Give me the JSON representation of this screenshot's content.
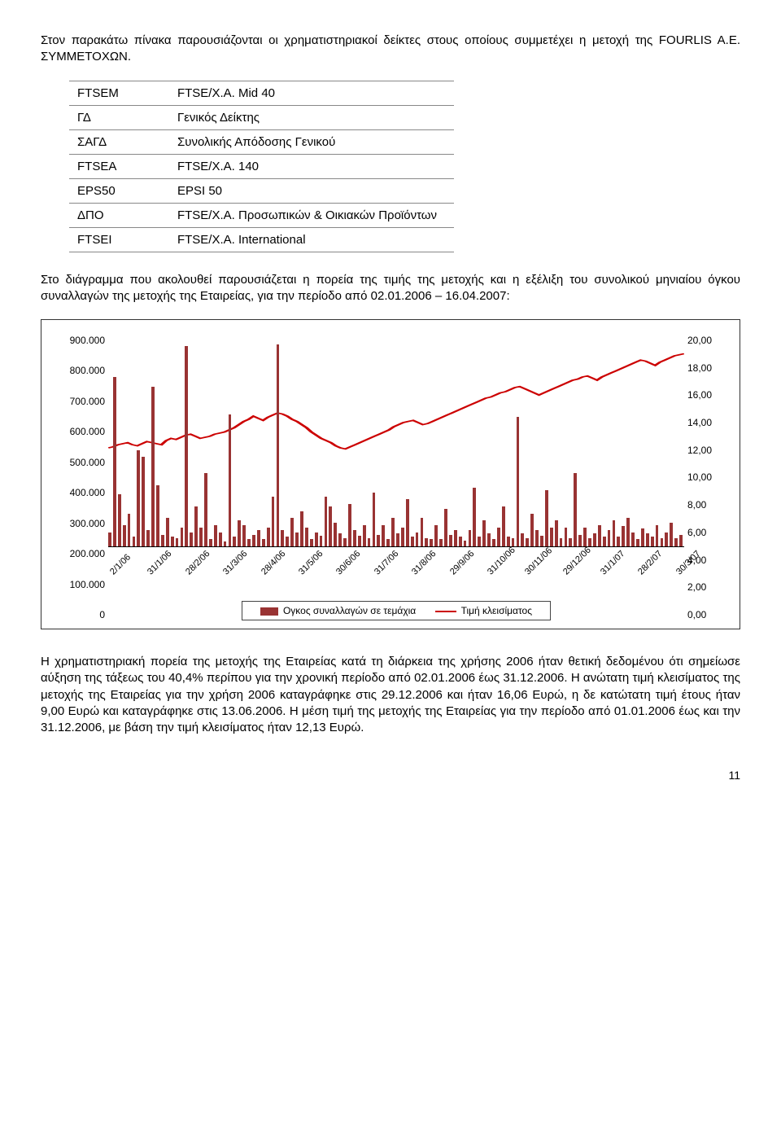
{
  "intro_text": "Στον παρακάτω πίνακα παρουσιάζονται οι χρηματιστηριακοί δείκτες στους οποίους συμμετέχει η μετοχή της FOURLIS A.E. ΣΥΜΜΕΤΟΧΩΝ.",
  "index_table": {
    "rows": [
      [
        "FTSEM",
        "FTSE/X.A. Mid 40"
      ],
      [
        "ΓΔ",
        "Γενικός Δείκτης"
      ],
      [
        "ΣΑΓΔ",
        "Συνολικής Απόδοσης Γενικού"
      ],
      [
        "FTSEA",
        "FTSE/X.A. 140"
      ],
      [
        "EPS50",
        "EPSI 50"
      ],
      [
        "ΔΠΟ",
        "FTSE/X.A. Προσωπικών & Οικιακών Προϊόντων"
      ],
      [
        "FTSEI",
        "FTSE/X.A. International"
      ]
    ]
  },
  "mid_text": "Στο διάγραμμα που ακολουθεί παρουσιάζεται η πορεία της τιμής της μετοχής και η εξέλιξη του συνολικού μηνιαίου όγκου συναλλαγών της μετοχής της Εταιρείας, για την περίοδο από 02.01.2006 – 16.04.2007:",
  "chart": {
    "type": "combo-bar-line",
    "background_color": "#ffffff",
    "y_left_labels": [
      "900.000",
      "800.000",
      "700.000",
      "600.000",
      "500.000",
      "400.000",
      "300.000",
      "200.000",
      "100.000",
      "0"
    ],
    "y_left_max": 900,
    "y_right_labels": [
      "20,00",
      "18,00",
      "16,00",
      "14,00",
      "12,00",
      "10,00",
      "8,00",
      "6,00",
      "4,00",
      "2,00",
      "0,00"
    ],
    "y_right_max": 20,
    "x_labels": [
      "2/1/06",
      "31/1/06",
      "28/2/06",
      "31/3/06",
      "28/4/06",
      "31/5/06",
      "30/6/06",
      "31/7/06",
      "31/8/06",
      "29/9/06",
      "31/10/06",
      "30/11/06",
      "29/12/06",
      "31/1/07",
      "28/2/07",
      "30/3/07"
    ],
    "bar_color": "#993333",
    "line_color": "#cc0000",
    "legend_bar_label": "Ογκος συναλλαγών σε τεμάχια",
    "legend_line_label": "Τιμή κλεισίματος",
    "volume_series": [
      60,
      720,
      220,
      90,
      140,
      40,
      410,
      380,
      70,
      680,
      260,
      50,
      120,
      40,
      35,
      80,
      850,
      60,
      170,
      80,
      310,
      30,
      90,
      60,
      20,
      560,
      40,
      110,
      90,
      30,
      50,
      70,
      30,
      80,
      210,
      860,
      70,
      40,
      120,
      60,
      150,
      80,
      30,
      60,
      45,
      210,
      170,
      100,
      55,
      35,
      180,
      70,
      45,
      90,
      35,
      230,
      50,
      90,
      30,
      120,
      55,
      80,
      200,
      40,
      60,
      120,
      35,
      30,
      90,
      30,
      160,
      50,
      70,
      40,
      25,
      70,
      250,
      40,
      110,
      55,
      30,
      80,
      170,
      40,
      35,
      550,
      55,
      35,
      140,
      70,
      45,
      240,
      80,
      110,
      35,
      80,
      35,
      310,
      50,
      80,
      35,
      55,
      90,
      40,
      70,
      110,
      40,
      85,
      120,
      60,
      30,
      75,
      55,
      40,
      90,
      35,
      60,
      100,
      35,
      50
    ],
    "price_series": [
      9.3,
      9.4,
      9.6,
      9.7,
      9.8,
      9.6,
      9.5,
      9.7,
      9.9,
      9.8,
      9.7,
      9.6,
      10.0,
      10.2,
      10.1,
      10.3,
      10.5,
      10.6,
      10.4,
      10.2,
      10.3,
      10.4,
      10.6,
      10.7,
      10.8,
      11.0,
      11.2,
      11.5,
      11.8,
      12.0,
      12.3,
      12.1,
      11.9,
      12.2,
      12.4,
      12.6,
      12.5,
      12.3,
      12.0,
      11.8,
      11.5,
      11.2,
      10.8,
      10.5,
      10.2,
      10.0,
      9.8,
      9.5,
      9.3,
      9.2,
      9.4,
      9.6,
      9.8,
      10.0,
      10.2,
      10.4,
      10.6,
      10.8,
      11.0,
      11.3,
      11.5,
      11.7,
      11.8,
      11.9,
      11.7,
      11.5,
      11.6,
      11.8,
      12.0,
      12.2,
      12.4,
      12.6,
      12.8,
      13.0,
      13.2,
      13.4,
      13.6,
      13.8,
      14.0,
      14.1,
      14.3,
      14.5,
      14.6,
      14.8,
      15.0,
      15.1,
      14.9,
      14.7,
      14.5,
      14.3,
      14.5,
      14.7,
      14.9,
      15.1,
      15.3,
      15.5,
      15.7,
      15.8,
      16.0,
      16.1,
      15.9,
      15.7,
      16.0,
      16.2,
      16.4,
      16.6,
      16.8,
      17.0,
      17.2,
      17.4,
      17.6,
      17.5,
      17.3,
      17.1,
      17.4,
      17.6,
      17.8,
      18.0,
      18.1,
      18.2
    ]
  },
  "bottom_text": "Η χρηματιστηριακή πορεία της μετοχής της Εταιρείας κατά τη διάρκεια της χρήσης 2006 ήταν θετική δεδομένου ότι σημείωσε αύξηση της τάξεως του 40,4% περίπου για την χρονική περίοδο από 02.01.2006 έως 31.12.2006.  Η ανώτατη τιμή κλεισίματος της μετοχής της Εταιρείας για την χρήση 2006 καταγράφηκε στις 29.12.2006 και ήταν 16,06 Ευρώ, η δε κατώτατη τιμή έτους ήταν 9,00 Ευρώ και καταγράφηκε στις 13.06.2006.  Η μέση τιμή της μετοχής της Εταιρείας για την περίοδο από 01.01.2006 έως και την 31.12.2006, με βάση την τιμή κλεισίματος ήταν 12,13 Ευρώ.",
  "page_number": "11"
}
